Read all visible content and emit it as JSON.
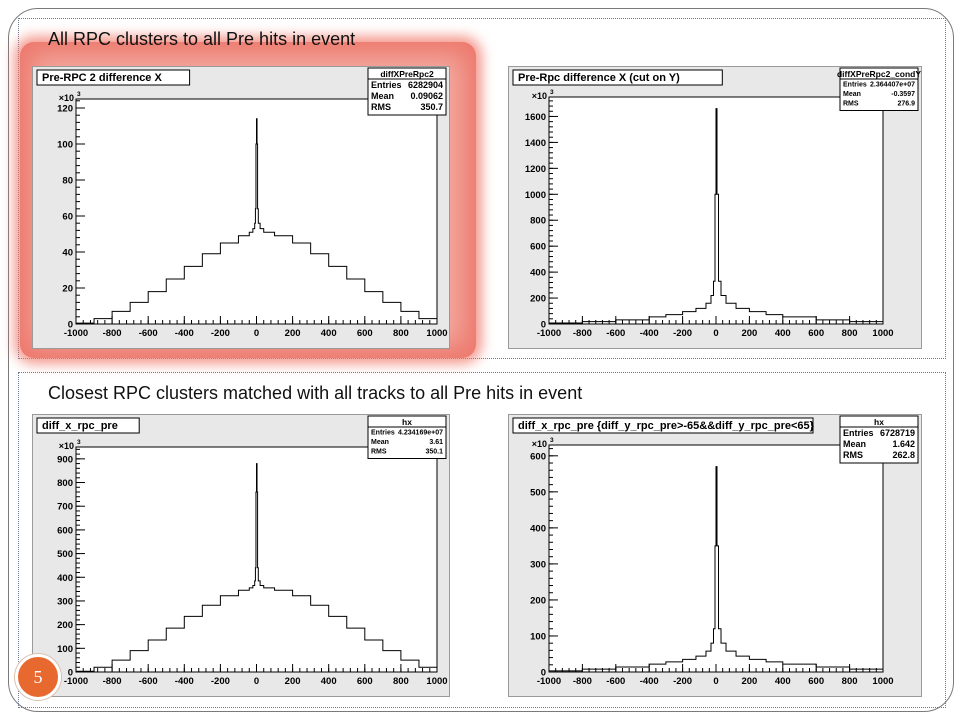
{
  "slide": {
    "heading_top": "All RPC clusters to all Pre hits in event",
    "heading_bottom": "Closest RPC clusters matched with all tracks to all Pre hits in event",
    "page_number": "5"
  },
  "colors": {
    "highlight": "#f3a79d",
    "badge": "#e8692f",
    "frame": "#e8e8e8"
  },
  "chart_data": [
    {
      "type": "line",
      "title": "Pre-RPC 2 difference X",
      "stats": {
        "name": "diffXPreRpc2",
        "rows": [
          [
            "Entries",
            "6282904"
          ],
          [
            "Mean",
            "0.09062"
          ],
          [
            "RMS",
            "350.7"
          ]
        ]
      },
      "multiplier": "×10",
      "multiplier_exp": "3",
      "xlim": [
        -1000,
        1000
      ],
      "ylim": [
        0,
        125
      ],
      "xticks": [
        "-1000",
        "-800",
        "-600",
        "-400",
        "-200",
        "0",
        "200",
        "400",
        "600",
        "800",
        "1000"
      ],
      "yticks": [
        [
          "0",
          0
        ],
        [
          "20",
          20
        ],
        [
          "40",
          40
        ],
        [
          "60",
          60
        ],
        [
          "80",
          80
        ],
        [
          "100",
          100
        ],
        [
          "120",
          120
        ]
      ],
      "x": [
        -1000,
        -900,
        -800,
        -700,
        -600,
        -500,
        -400,
        -300,
        -200,
        -100,
        -40,
        -20,
        -10,
        -6,
        -3,
        0,
        3,
        6,
        10,
        20,
        40,
        100,
        200,
        300,
        400,
        500,
        600,
        700,
        800,
        900,
        1000
      ],
      "y": [
        0.5,
        3,
        7,
        12,
        18,
        25,
        32,
        39,
        45,
        49,
        51,
        53,
        56,
        64,
        100,
        114,
        100,
        64,
        56,
        53,
        51,
        49,
        45,
        39,
        32,
        25,
        18,
        12,
        7,
        3,
        0.5
      ]
    },
    {
      "type": "line",
      "title": "Pre-Rpc difference X (cut on Y)",
      "stats": {
        "name": "diffXPreRpc2_condY",
        "rows": [
          [
            "Entries",
            "2.364407e+07"
          ],
          [
            "Mean",
            "-0.3597"
          ],
          [
            "RMS",
            "276.9"
          ]
        ]
      },
      "multiplier": "×10",
      "multiplier_exp": "3",
      "xlim": [
        -1000,
        1000
      ],
      "ylim": [
        0,
        1750
      ],
      "xticks": [
        "-1000",
        "-800",
        "-600",
        "-400",
        "-200",
        "0",
        "200",
        "400",
        "600",
        "800",
        "1000"
      ],
      "yticks": [
        [
          "0",
          0
        ],
        [
          "200",
          200
        ],
        [
          "400",
          400
        ],
        [
          "600",
          600
        ],
        [
          "800",
          800
        ],
        [
          "1000",
          1000
        ],
        [
          "1200",
          1200
        ],
        [
          "1400",
          1400
        ],
        [
          "1600",
          1600
        ]
      ],
      "x": [
        -1000,
        -800,
        -600,
        -400,
        -300,
        -200,
        -120,
        -60,
        -30,
        -15,
        -6,
        0,
        6,
        15,
        30,
        60,
        120,
        200,
        300,
        400,
        600,
        800,
        1000
      ],
      "y": [
        8,
        18,
        32,
        55,
        72,
        95,
        120,
        160,
        220,
        330,
        1000,
        1660,
        1000,
        330,
        220,
        160,
        120,
        95,
        72,
        55,
        32,
        18,
        8
      ]
    },
    {
      "type": "line",
      "title": "diff_x_rpc_pre",
      "stats": {
        "name": "hx",
        "rows": [
          [
            "Entries",
            "4.234169e+07"
          ],
          [
            "Mean",
            "3.61"
          ],
          [
            "RMS",
            "350.1"
          ]
        ]
      },
      "multiplier": "×10",
      "multiplier_exp": "3",
      "xlim": [
        -1000,
        1000
      ],
      "ylim": [
        0,
        950
      ],
      "xticks": [
        "-1000",
        "-800",
        "-600",
        "-400",
        "-200",
        "0",
        "200",
        "400",
        "600",
        "800",
        "1000"
      ],
      "yticks": [
        [
          "0",
          0
        ],
        [
          "100",
          100
        ],
        [
          "200",
          200
        ],
        [
          "300",
          300
        ],
        [
          "400",
          400
        ],
        [
          "500",
          500
        ],
        [
          "600",
          600
        ],
        [
          "700",
          700
        ],
        [
          "800",
          800
        ],
        [
          "900",
          900
        ]
      ],
      "x": [
        -1000,
        -900,
        -800,
        -700,
        -600,
        -500,
        -400,
        -300,
        -200,
        -100,
        -40,
        -20,
        -10,
        -6,
        -3,
        0,
        3,
        6,
        10,
        20,
        40,
        100,
        200,
        300,
        400,
        500,
        600,
        700,
        800,
        900,
        1000
      ],
      "y": [
        3,
        20,
        50,
        90,
        135,
        185,
        235,
        282,
        322,
        345,
        355,
        365,
        385,
        440,
        760,
        880,
        760,
        440,
        385,
        365,
        355,
        345,
        322,
        282,
        235,
        185,
        135,
        90,
        50,
        20,
        3
      ]
    },
    {
      "type": "line",
      "title": "diff_x_rpc_pre {diff_y_rpc_pre>-65&&diff_y_rpc_pre<65}",
      "stats": {
        "name": "hx",
        "rows": [
          [
            "Entries",
            "6728719"
          ],
          [
            "Mean",
            "1.642"
          ],
          [
            "RMS",
            "262.8"
          ]
        ]
      },
      "multiplier": "×10",
      "multiplier_exp": "3",
      "xlim": [
        -1000,
        1000
      ],
      "ylim": [
        0,
        630
      ],
      "xticks": [
        "-1000",
        "-800",
        "-600",
        "-400",
        "-200",
        "0",
        "200",
        "400",
        "600",
        "800",
        "1000"
      ],
      "yticks": [
        [
          "0",
          0
        ],
        [
          "100",
          100
        ],
        [
          "200",
          200
        ],
        [
          "300",
          300
        ],
        [
          "400",
          400
        ],
        [
          "500",
          500
        ],
        [
          "600",
          600
        ]
      ],
      "x": [
        -1000,
        -800,
        -600,
        -400,
        -300,
        -200,
        -120,
        -60,
        -30,
        -15,
        -6,
        0,
        6,
        15,
        30,
        60,
        120,
        200,
        300,
        400,
        600,
        800,
        1000
      ],
      "y": [
        3,
        8,
        14,
        22,
        28,
        35,
        44,
        58,
        80,
        120,
        350,
        570,
        350,
        120,
        80,
        58,
        44,
        35,
        28,
        22,
        14,
        8,
        3
      ]
    }
  ]
}
